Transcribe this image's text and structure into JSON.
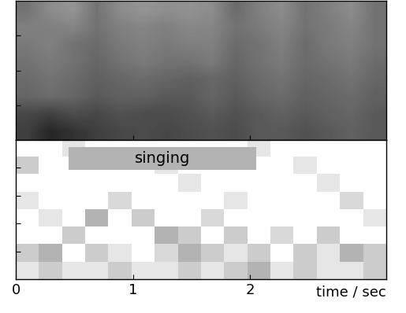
{
  "chart_data": [
    {
      "type": "heatmap",
      "xlim": [
        0,
        3.16
      ],
      "xticks": [
        0,
        1,
        2
      ],
      "ylim": [
        0,
        1
      ],
      "yticks": [
        0.25,
        0.5,
        0.75
      ],
      "tick_labels": false,
      "color_range": [
        0,
        1
      ],
      "cells": [
        [
          0.55,
          0.45,
          0.42,
          0.55,
          0.45,
          0.42,
          0.44,
          0.43,
          0.45,
          0.58,
          0.5,
          0.45,
          0.55,
          0.5,
          0.45,
          0.55
        ],
        [
          0.5,
          0.5,
          0.48,
          0.55,
          0.5,
          0.48,
          0.5,
          0.47,
          0.48,
          0.55,
          0.52,
          0.48,
          0.55,
          0.52,
          0.48,
          0.55
        ],
        [
          0.52,
          0.5,
          0.55,
          0.58,
          0.52,
          0.5,
          0.52,
          0.5,
          0.5,
          0.58,
          0.55,
          0.5,
          0.58,
          0.52,
          0.5,
          0.55
        ],
        [
          0.55,
          0.52,
          0.55,
          0.6,
          0.55,
          0.52,
          0.55,
          0.55,
          0.52,
          0.6,
          0.55,
          0.52,
          0.58,
          0.55,
          0.52,
          0.58
        ],
        [
          0.58,
          0.55,
          0.58,
          0.62,
          0.6,
          0.58,
          0.6,
          0.62,
          0.6,
          0.62,
          0.58,
          0.55,
          0.6,
          0.58,
          0.55,
          0.6
        ],
        [
          0.6,
          0.58,
          0.6,
          0.65,
          0.62,
          0.62,
          0.65,
          0.65,
          0.6,
          0.65,
          0.6,
          0.58,
          0.62,
          0.6,
          0.58,
          0.62
        ],
        [
          0.72,
          0.75,
          0.7,
          0.72,
          0.68,
          0.7,
          0.7,
          0.68,
          0.65,
          0.68,
          0.65,
          0.62,
          0.65,
          0.62,
          0.6,
          0.65
        ],
        [
          0.75,
          0.85,
          0.8,
          0.75,
          0.72,
          0.7,
          0.72,
          0.7,
          0.68,
          0.7,
          0.65,
          0.65,
          0.68,
          0.65,
          0.62,
          0.65
        ]
      ]
    },
    {
      "type": "heatmap",
      "x_label": "time / sec",
      "xlim": [
        0,
        3.16
      ],
      "xticks": [
        0,
        1,
        2
      ],
      "ylim": [
        0,
        1
      ],
      "yticks": [
        0.2,
        0.4,
        0.6,
        0.8
      ],
      "tick_labels": "x",
      "color_range": [
        0,
        1
      ],
      "color": "#b3b3b3",
      "annotation": {
        "text": "singing",
        "start": 0.45,
        "end": 2.05
      },
      "cells": [
        [
          0,
          0,
          0.1,
          0,
          0,
          0,
          0,
          0,
          0,
          0,
          0.1,
          0,
          0,
          0,
          0,
          0
        ],
        [
          0.2,
          0,
          0,
          0,
          0,
          0,
          0.1,
          0,
          0,
          0,
          0,
          0,
          0.1,
          0,
          0,
          0
        ],
        [
          0,
          0,
          0,
          0,
          0,
          0,
          0,
          0.1,
          0,
          0,
          0,
          0,
          0,
          0.1,
          0,
          0
        ],
        [
          0.1,
          0,
          0,
          0,
          0.15,
          0,
          0,
          0,
          0,
          0.1,
          0,
          0,
          0,
          0,
          0.15,
          0
        ],
        [
          0,
          0.1,
          0,
          0.3,
          0,
          0.2,
          0,
          0,
          0.15,
          0,
          0,
          0,
          0,
          0,
          0,
          0.1
        ],
        [
          0,
          0,
          0.2,
          0,
          0,
          0,
          0.3,
          0.2,
          0,
          0.2,
          0,
          0.15,
          0,
          0.2,
          0,
          0
        ],
        [
          0.2,
          0.3,
          0,
          0.2,
          0.1,
          0,
          0.15,
          0.3,
          0.2,
          0.1,
          0.2,
          0,
          0.2,
          0.1,
          0.3,
          0.2
        ],
        [
          0.1,
          0.2,
          0.1,
          0.1,
          0.2,
          0.1,
          0.1,
          0.2,
          0.1,
          0.2,
          0.3,
          0.1,
          0.2,
          0.1,
          0.1,
          0.2
        ]
      ]
    }
  ]
}
